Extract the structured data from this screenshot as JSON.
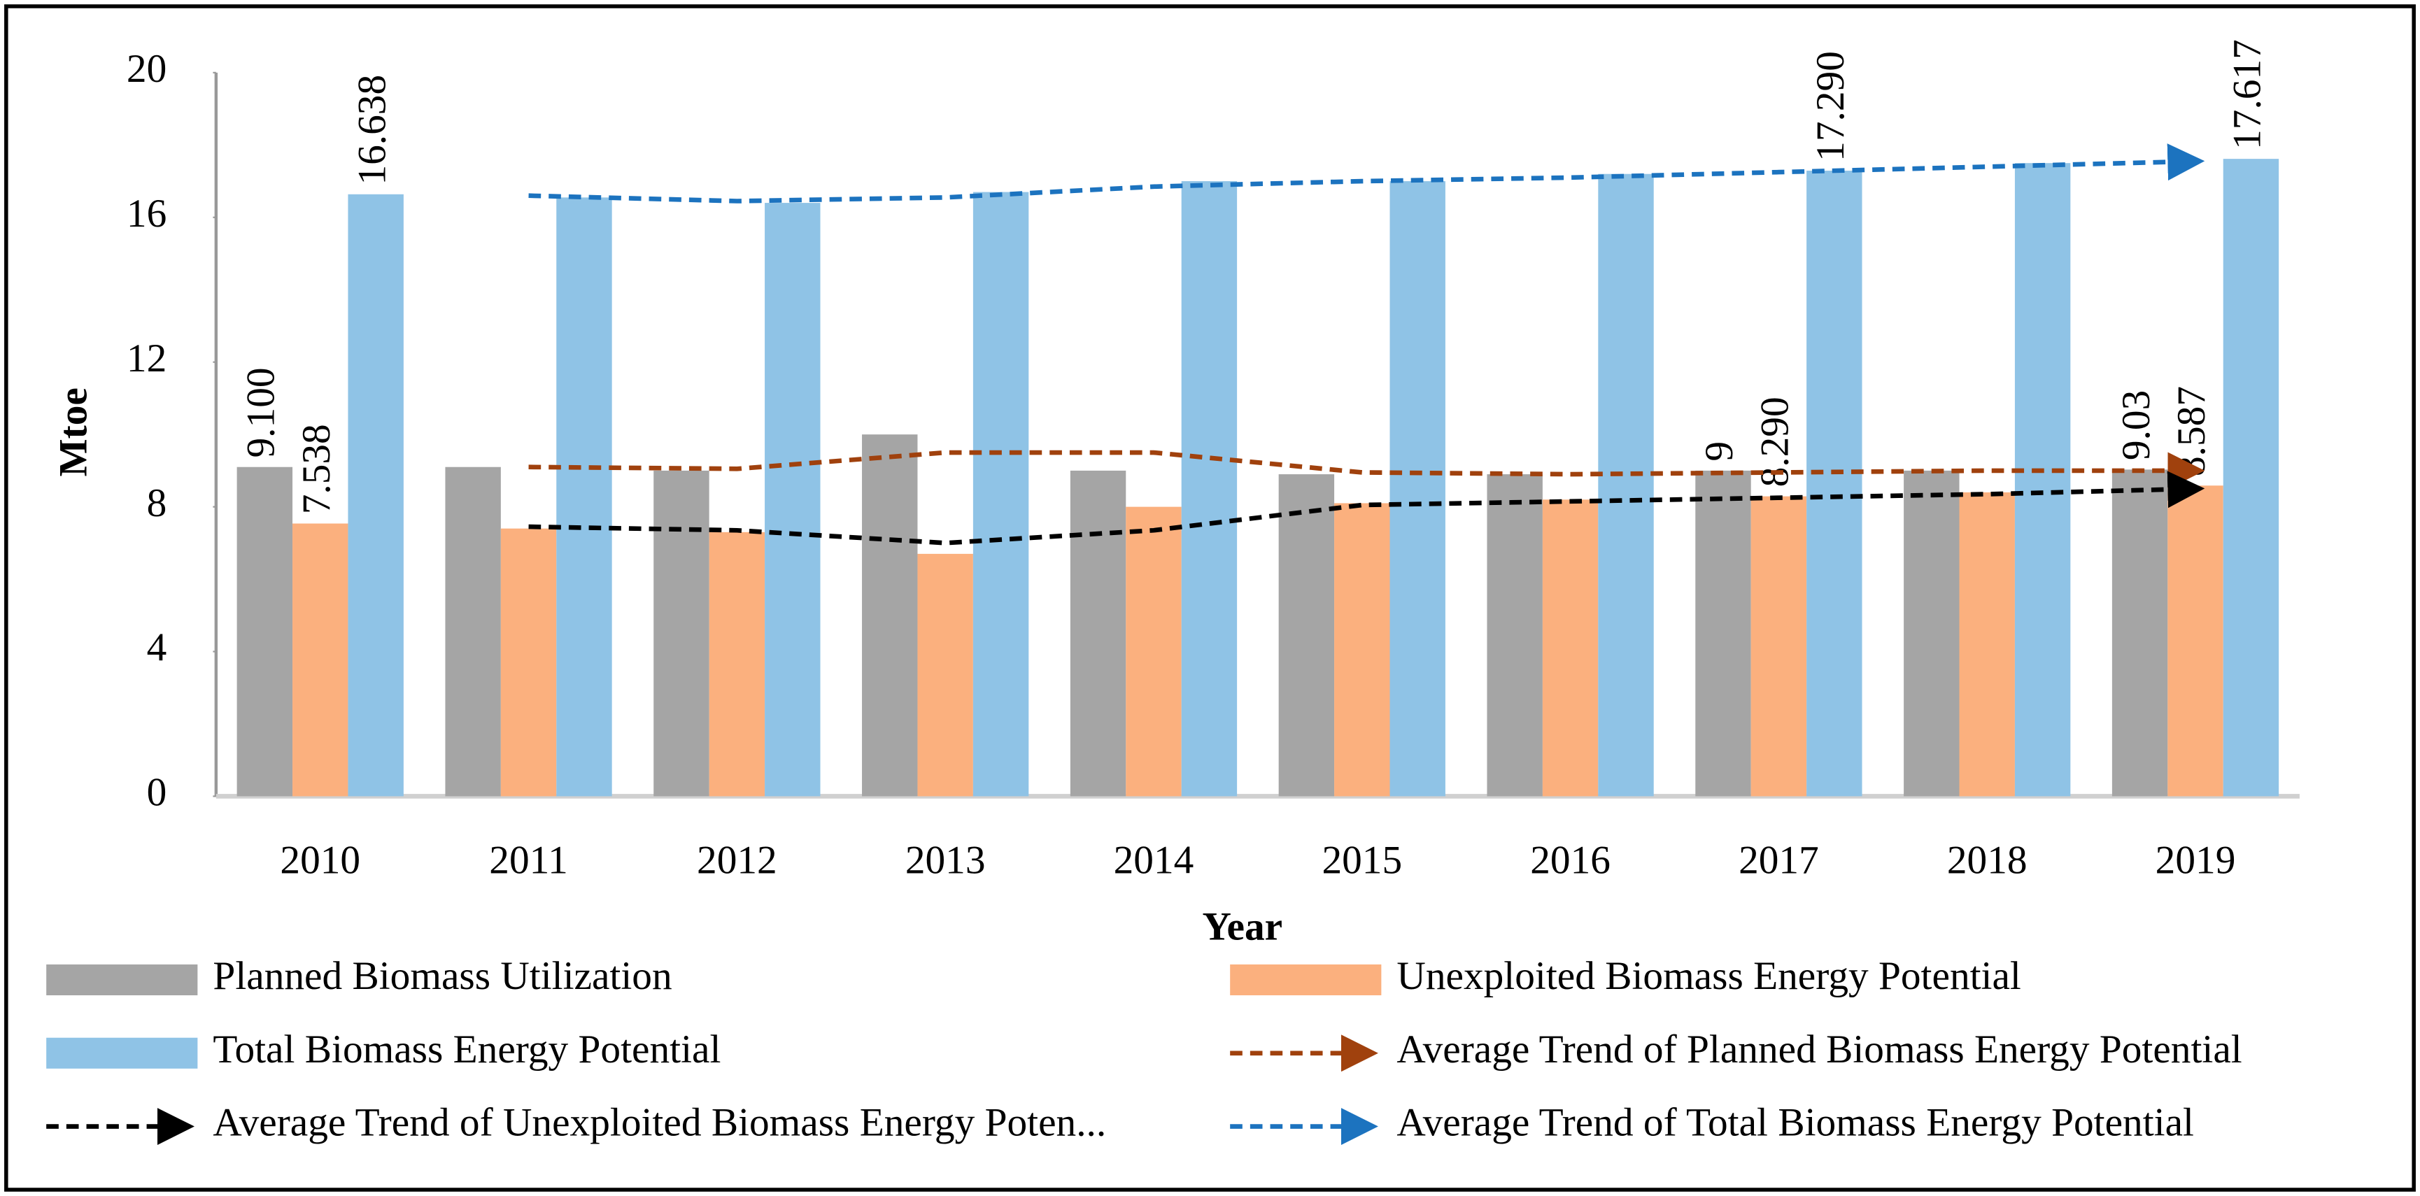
{
  "chart_data": {
    "type": "bar",
    "x_label": "Year",
    "y_label": "Mtoe",
    "categories": [
      "2010",
      "2011",
      "2012",
      "2013",
      "2014",
      "2015",
      "2016",
      "2017",
      "2018",
      "2019"
    ],
    "ylim": [
      0,
      20
    ],
    "yticks": [
      0,
      4,
      8,
      12,
      16,
      20
    ],
    "series": [
      {
        "name": "Planned Biomass Utilization",
        "type": "bar",
        "color": "#a5a5a5",
        "values": [
          9.1,
          9.1,
          9.0,
          10.0,
          9.0,
          8.9,
          8.9,
          9,
          9.0,
          9.03
        ],
        "value_labels": [
          "9.100",
          null,
          null,
          null,
          null,
          null,
          null,
          "9",
          null,
          "9.03"
        ]
      },
      {
        "name": "Unexploited Biomass Energy Potential",
        "type": "bar",
        "color": "#fbb07e",
        "values": [
          7.538,
          7.4,
          7.3,
          6.7,
          8.0,
          8.1,
          8.2,
          8.29,
          8.4,
          8.587
        ],
        "value_labels": [
          "7.538",
          null,
          null,
          null,
          null,
          null,
          null,
          "8.290",
          null,
          "8.587"
        ]
      },
      {
        "name": "Total Biomass Energy Potential",
        "type": "bar",
        "color": "#8fc3e6",
        "values": [
          16.638,
          16.55,
          16.4,
          16.7,
          17.0,
          17.0,
          17.2,
          17.29,
          17.5,
          17.617
        ],
        "value_labels": [
          "16.638",
          null,
          null,
          null,
          null,
          null,
          null,
          "17.290",
          null,
          "17.617"
        ]
      },
      {
        "name": "Average Trend of Planned Biomass Energy Potential",
        "type": "line",
        "color": "#a0410d",
        "values": [
          null,
          9.1,
          9.05,
          9.5,
          9.5,
          8.95,
          8.9,
          8.95,
          9.0,
          9.0
        ]
      },
      {
        "name": "Average Trend of Unexploited Biomass Energy Poten...",
        "type": "line",
        "color": "#000000",
        "values": [
          null,
          7.45,
          7.35,
          7.0,
          7.35,
          8.05,
          8.15,
          8.25,
          8.35,
          8.5
        ]
      },
      {
        "name": "Average Trend of Total Biomass Energy Potential",
        "type": "line",
        "color": "#1c73bf",
        "values": [
          null,
          16.6,
          16.45,
          16.55,
          16.85,
          17.0,
          17.1,
          17.25,
          17.4,
          17.55
        ]
      }
    ]
  }
}
